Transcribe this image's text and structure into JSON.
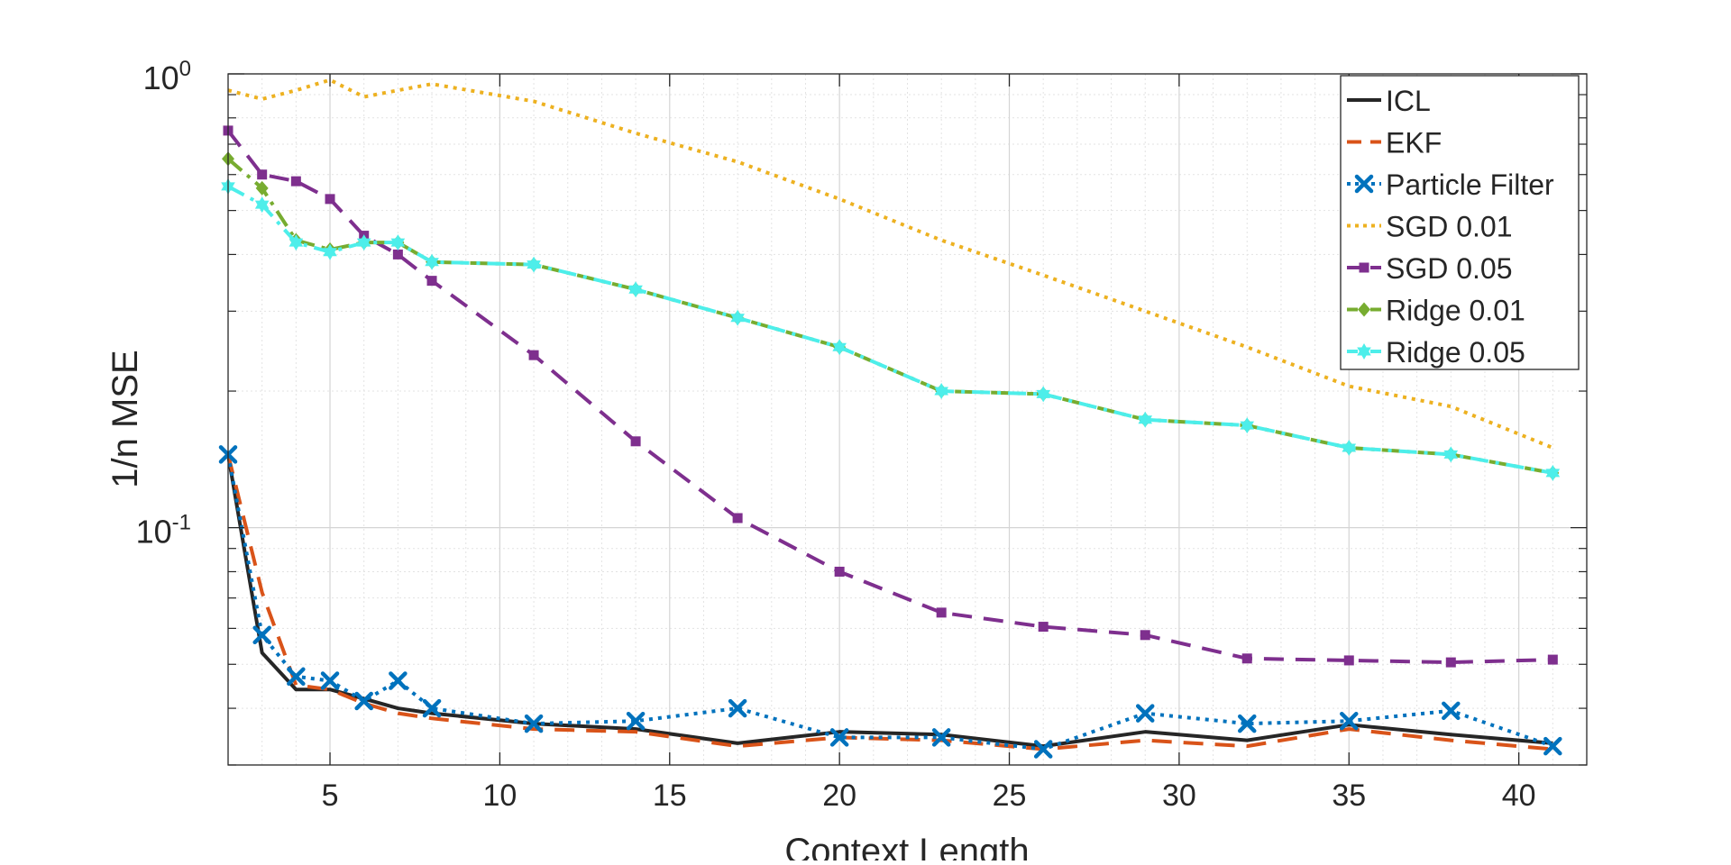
{
  "chart_data": {
    "type": "line",
    "title": "",
    "xlabel": "Context Length",
    "ylabel": "1/n MSE",
    "yscale": "log",
    "xlim": [
      2,
      42
    ],
    "ylim": [
      0.03,
      1.0
    ],
    "grid": true,
    "legend_position": "top-right",
    "x_ticks": [
      5,
      10,
      15,
      20,
      25,
      30,
      35,
      40
    ],
    "x_tick_labels": [
      "5",
      "10",
      "15",
      "20",
      "25",
      "30",
      "35",
      "40"
    ],
    "y_major_ticks": [
      0.1,
      1.0
    ],
    "y_tick_labels": [
      {
        "base": "10",
        "exp": "-1"
      },
      {
        "base": "10",
        "exp": "0"
      }
    ],
    "series": [
      {
        "name": "ICL",
        "color": "#262626",
        "style": "solid",
        "marker": "none",
        "x": [
          2,
          3,
          4,
          5,
          6,
          7,
          8,
          11,
          14,
          17,
          20,
          23,
          26,
          29,
          32,
          35,
          38,
          41
        ],
        "y": [
          0.145,
          0.053,
          0.044,
          0.044,
          0.042,
          0.04,
          0.039,
          0.037,
          0.036,
          0.0335,
          0.0355,
          0.035,
          0.033,
          0.0355,
          0.034,
          0.0368,
          0.035,
          0.0335
        ]
      },
      {
        "name": "EKF",
        "color": "#D95319",
        "style": "dashed",
        "marker": "none",
        "x": [
          2,
          3,
          4,
          5,
          6,
          7,
          8,
          11,
          14,
          17,
          20,
          23,
          26,
          29,
          32,
          35,
          38,
          41
        ],
        "y": [
          0.145,
          0.072,
          0.045,
          0.044,
          0.041,
          0.039,
          0.038,
          0.036,
          0.0355,
          0.033,
          0.0345,
          0.034,
          0.0325,
          0.034,
          0.033,
          0.036,
          0.034,
          0.0325
        ]
      },
      {
        "name": "Particle Filter",
        "color": "#0072BD",
        "style": "dotted",
        "marker": "x",
        "x": [
          2,
          3,
          4,
          5,
          6,
          7,
          8,
          11,
          14,
          17,
          20,
          23,
          26,
          29,
          32,
          35,
          38,
          41
        ],
        "y": [
          0.145,
          0.058,
          0.047,
          0.046,
          0.0415,
          0.046,
          0.04,
          0.037,
          0.0375,
          0.04,
          0.0345,
          0.0345,
          0.0325,
          0.039,
          0.037,
          0.0375,
          0.0395,
          0.033
        ]
      },
      {
        "name": "SGD 0.01",
        "color": "#EDB120",
        "style": "dotted",
        "marker": "none",
        "x": [
          2,
          3,
          4,
          5,
          6,
          7,
          8,
          11,
          14,
          17,
          20,
          23,
          26,
          29,
          32,
          35,
          38,
          41
        ],
        "y": [
          0.92,
          0.88,
          0.92,
          0.97,
          0.89,
          0.92,
          0.95,
          0.87,
          0.74,
          0.64,
          0.53,
          0.43,
          0.36,
          0.3,
          0.25,
          0.205,
          0.185,
          0.15
        ]
      },
      {
        "name": "SGD 0.05",
        "color": "#7E2F8E",
        "style": "dashed",
        "marker": "square",
        "x": [
          2,
          3,
          4,
          5,
          6,
          7,
          8,
          11,
          14,
          17,
          20,
          23,
          26,
          29,
          32,
          35,
          38,
          41
        ],
        "y": [
          0.75,
          0.6,
          0.58,
          0.53,
          0.44,
          0.4,
          0.35,
          0.24,
          0.155,
          0.105,
          0.08,
          0.065,
          0.0605,
          0.058,
          0.0515,
          0.051,
          0.0505,
          0.0512
        ]
      },
      {
        "name": "Ridge 0.01",
        "color": "#77AC30",
        "style": "dashdot",
        "marker": "diamond",
        "x": [
          2,
          3,
          4,
          5,
          6,
          7,
          8,
          11,
          14,
          17,
          20,
          23,
          26,
          29,
          32,
          35,
          38,
          41
        ],
        "y": [
          0.65,
          0.56,
          0.43,
          0.41,
          0.425,
          0.425,
          0.385,
          0.38,
          0.335,
          0.29,
          0.25,
          0.2,
          0.197,
          0.173,
          0.168,
          0.15,
          0.145,
          0.132
        ]
      },
      {
        "name": "Ridge 0.05",
        "color": "#4DEEEA",
        "style": "dashdot",
        "marker": "hexagram",
        "x": [
          2,
          3,
          4,
          5,
          6,
          7,
          8,
          11,
          14,
          17,
          20,
          23,
          26,
          29,
          32,
          35,
          38,
          41
        ],
        "y": [
          0.565,
          0.515,
          0.425,
          0.405,
          0.425,
          0.425,
          0.385,
          0.38,
          0.335,
          0.29,
          0.25,
          0.2,
          0.197,
          0.173,
          0.168,
          0.15,
          0.145,
          0.132
        ]
      }
    ]
  }
}
